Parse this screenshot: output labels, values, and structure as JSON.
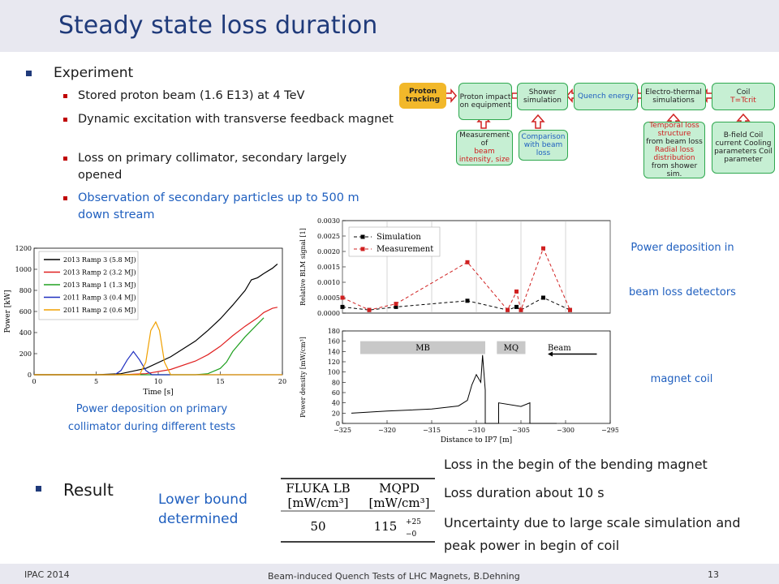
{
  "title": "Steady state loss duration",
  "experiment": {
    "heading": "Experiment",
    "items": [
      "Stored proton beam (1.6 E13) at 4 TeV",
      "Dynamic excitation with transverse feedback magnet",
      "Loss on primary collimator, secondary largely opened",
      "Observation of secondary particles up to 500 m down stream"
    ]
  },
  "flow": {
    "proton_tracking": "Proton tracking",
    "proton_impact": "Proton impact on equipment",
    "shower": "Shower simulation",
    "quench_energy": "Quench energy",
    "electro_thermal": "Electro-thermal simulations",
    "coil": "Coil",
    "coil_t": "T=Tcrit",
    "measurement_a": "Measurement of",
    "measurement_b": "beam intensity, size",
    "comparison": "Comparison with beam loss",
    "temporal_a": "Temporal loss structure",
    "temporal_b": "from beam loss",
    "radial_a": "Radial loss distribution",
    "radial_b": "from shower sim.",
    "bfield": "B-field Coil current Cooling parameters Coil parameter"
  },
  "captions": {
    "power_dep_primary": "Power deposition on primary collimator during different tests",
    "power_dep_blm_1": "Power deposition in",
    "power_dep_blm_2": "beam loss detectors",
    "magnet_coil": "magnet coil"
  },
  "chart_data": [
    {
      "type": "line",
      "xlabel": "Time [s]",
      "ylabel": "Power [kW]",
      "xlim": [
        0,
        20
      ],
      "ylim": [
        0,
        1200
      ],
      "xticks": [
        "0",
        "5",
        "10",
        "15",
        "20"
      ],
      "yticks": [
        "0",
        "200",
        "400",
        "600",
        "800",
        "1000",
        "1200"
      ],
      "legend_position": "top-left",
      "series": [
        {
          "name": "2013 Ramp 3 (5.8 MJ)",
          "color": "#000000",
          "x": [
            0,
            5,
            7,
            9,
            11,
            13,
            14,
            15,
            16,
            17,
            17.5,
            18,
            18.5,
            19.2,
            19.6
          ],
          "y": [
            0,
            0,
            10,
            60,
            170,
            320,
            420,
            530,
            660,
            800,
            900,
            920,
            960,
            1010,
            1050
          ]
        },
        {
          "name": "2013 Ramp 2 (3.2 MJ)",
          "color": "#e02020",
          "x": [
            0,
            7,
            9,
            11,
            13,
            14,
            15,
            16,
            17,
            18,
            18.5,
            19.2,
            19.6
          ],
          "y": [
            0,
            0,
            10,
            50,
            130,
            190,
            270,
            370,
            460,
            540,
            590,
            630,
            640
          ]
        },
        {
          "name": "2013 Ramp 1 (1.3 MJ)",
          "color": "#20a020",
          "x": [
            0,
            13,
            14,
            15,
            15.5,
            16,
            17,
            18,
            18.5
          ],
          "y": [
            0,
            0,
            10,
            60,
            120,
            220,
            360,
            480,
            540
          ]
        },
        {
          "name": "2011 Ramp 3 (0.4 MJ)",
          "color": "#2030c0",
          "x": [
            0,
            6.5,
            7,
            7.5,
            8,
            8.5,
            9,
            9.5,
            20
          ],
          "y": [
            0,
            0,
            40,
            140,
            220,
            140,
            40,
            0,
            0
          ]
        },
        {
          "name": "2011 Ramp 2 (0.6 MJ)",
          "color": "#f0a000",
          "x": [
            0,
            8.5,
            9,
            9.4,
            9.8,
            10.1,
            10.5,
            11,
            20
          ],
          "y": [
            0,
            0,
            120,
            420,
            500,
            420,
            120,
            0,
            0
          ]
        }
      ]
    },
    {
      "type": "line",
      "xlabel": "",
      "ylabel": "Relative BLM signal [1]",
      "xlim": [
        -325,
        -295
      ],
      "ylim": [
        0,
        0.003
      ],
      "yticks": [
        "0.0000",
        "0.0005",
        "0.0010",
        "0.0015",
        "0.0020",
        "0.0025",
        "0.0030"
      ],
      "legend_position": "top-left",
      "series": [
        {
          "name": "Simulation",
          "color": "#000000",
          "x": [
            -325,
            -322,
            -319,
            -311,
            -306.5,
            -305.5,
            -305,
            -302.5,
            -299.5
          ],
          "y": [
            0.0002,
            0.0001,
            0.0002,
            0.0004,
            0.0001,
            0.0002,
            0.0001,
            0.0005,
            0.0001
          ]
        },
        {
          "name": "Measurement",
          "color": "#d02020",
          "x": [
            -325,
            -322,
            -319,
            -311,
            -306.5,
            -305.5,
            -305,
            -302.5,
            -299.5
          ],
          "y": [
            0.0005,
            0.0001,
            0.0003,
            0.00165,
            0.0001,
            0.0007,
            0.0001,
            0.0021,
            0.0001
          ]
        }
      ]
    },
    {
      "type": "line",
      "xlabel": "Distance to IP7 [m]",
      "ylabel": "Power density [mW/cm³]",
      "xlim": [
        -325,
        -295
      ],
      "ylim": [
        0,
        180
      ],
      "xticks": [
        "−325",
        "−320",
        "−315",
        "−310",
        "−305",
        "−300",
        "−295"
      ],
      "yticks": [
        "0",
        "20",
        "40",
        "60",
        "80",
        "100",
        "120",
        "140",
        "160",
        "180"
      ],
      "labels": {
        "mb": "MB",
        "mq": "MQ",
        "beam": "Beam"
      },
      "series": [
        {
          "name": "",
          "color": "#000000",
          "x": [
            -324,
            -320,
            -315,
            -312,
            -311,
            -310.5,
            -310,
            -309.5,
            -309.3,
            -309,
            -309,
            -307.5,
            -307.5,
            -305,
            -304,
            -304,
            -301
          ],
          "y": [
            20,
            24,
            28,
            34,
            45,
            75,
            95,
            80,
            133,
            65,
            0,
            0,
            40,
            33,
            40,
            0,
            0
          ]
        }
      ]
    }
  ],
  "result": {
    "heading": "Result",
    "lower_bound": "Lower bound determined",
    "table": {
      "col1": "FLUKA LB",
      "col2": "MQPD",
      "unit1": "[mW/cm³]",
      "unit2": "[mW/cm³]",
      "val1": "50",
      "val2": "115",
      "err_up": "+25",
      "err_down": "−0"
    },
    "points": [
      "Loss in the begin of the bending magnet",
      "Loss duration about 10 s",
      "Uncertainty due to large scale simulation and peak power in begin of coil"
    ]
  },
  "footer": {
    "left": "IPAC 2014",
    "center": "Beam-induced Quench Tests of LHC Magnets, B.Dehning",
    "page": "13"
  }
}
